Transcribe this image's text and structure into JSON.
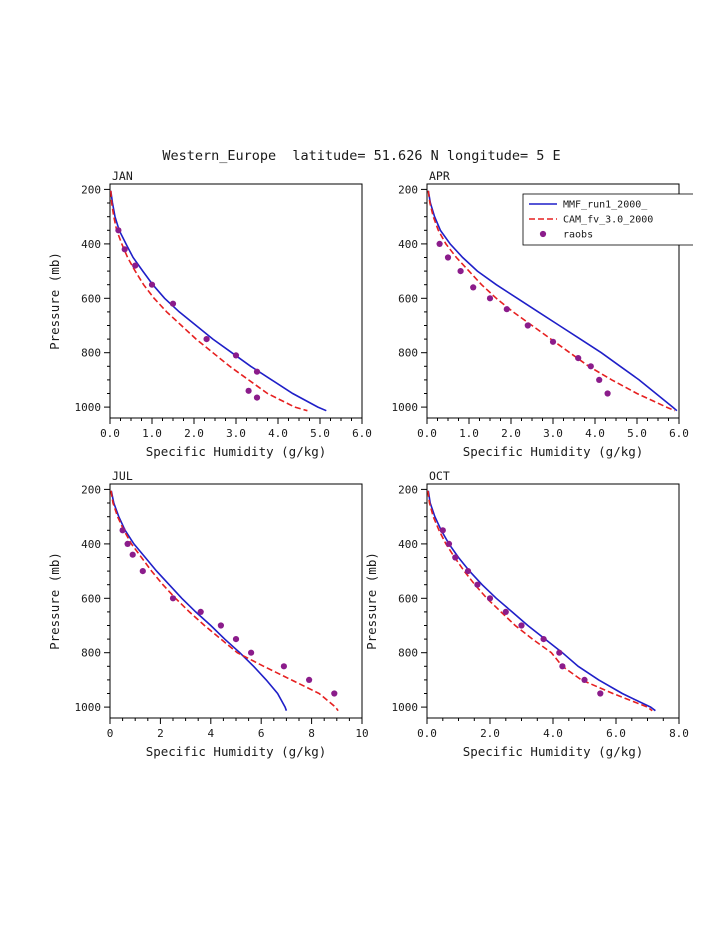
{
  "page": {
    "title": "Western_Europe  latitude= 51.626 N longitude= 5 E"
  },
  "colors": {
    "mmf": "#1f1fc8",
    "cam": "#e62020",
    "raobs": "#8b1c8b",
    "axis": "#000000"
  },
  "legend": {
    "items": [
      {
        "label": "MMF_run1_2000_",
        "style": "solid",
        "color_key": "mmf"
      },
      {
        "label": "CAM_fv_3.0_2000",
        "style": "dashed",
        "color_key": "cam"
      },
      {
        "label": "raobs",
        "style": "dot",
        "color_key": "raobs"
      }
    ]
  },
  "chart_data": [
    {
      "type": "line",
      "title": "JAN",
      "xlabel": "Specific Humidity (g/kg)",
      "ylabel": "Pressure (mb)",
      "show_ylabel": true,
      "show_legend": false,
      "xlim": [
        0,
        6
      ],
      "xtick_major": 1,
      "xtick_minor": 0.25,
      "xtick_decimals": 1,
      "ylim": [
        180,
        1040
      ],
      "ytick_major": 200,
      "ytick_minor": 50,
      "series": [
        {
          "name": "MMF_run1_2000_",
          "style": "solid",
          "color_key": "mmf",
          "pressure": [
            205,
            250,
            300,
            350,
            400,
            450,
            500,
            550,
            600,
            650,
            700,
            750,
            800,
            850,
            900,
            950,
            1000,
            1013
          ],
          "humidity": [
            0.02,
            0.06,
            0.12,
            0.22,
            0.38,
            0.55,
            0.78,
            1.02,
            1.3,
            1.65,
            2.05,
            2.45,
            2.9,
            3.35,
            3.85,
            4.35,
            4.95,
            5.15
          ]
        },
        {
          "name": "CAM_fv_3.0_2000",
          "style": "dashed",
          "color_key": "cam",
          "pressure": [
            205,
            250,
            300,
            350,
            400,
            450,
            500,
            550,
            600,
            650,
            700,
            750,
            800,
            850,
            900,
            950,
            1000,
            1013
          ],
          "humidity": [
            0.02,
            0.04,
            0.09,
            0.16,
            0.28,
            0.42,
            0.6,
            0.8,
            1.05,
            1.35,
            1.7,
            2.05,
            2.45,
            2.85,
            3.3,
            3.75,
            4.4,
            4.7
          ]
        },
        {
          "name": "raobs",
          "style": "dots",
          "color_key": "raobs",
          "pressure": [
            350,
            420,
            480,
            550,
            620,
            750,
            810,
            870,
            940,
            965
          ],
          "humidity": [
            0.2,
            0.35,
            0.6,
            1.0,
            1.5,
            2.3,
            3.0,
            3.5,
            3.3,
            3.5
          ]
        }
      ]
    },
    {
      "type": "line",
      "title": "APR",
      "xlabel": "Specific Humidity (g/kg)",
      "ylabel": "Pressure (mb)",
      "show_ylabel": false,
      "show_legend": true,
      "xlim": [
        0,
        6
      ],
      "xtick_major": 1,
      "xtick_minor": 0.25,
      "xtick_decimals": 1,
      "ylim": [
        180,
        1040
      ],
      "ytick_major": 200,
      "ytick_minor": 50,
      "series": [
        {
          "name": "MMF_run1_2000_",
          "style": "solid",
          "color_key": "mmf",
          "pressure": [
            205,
            250,
            300,
            350,
            400,
            450,
            500,
            550,
            600,
            650,
            700,
            750,
            800,
            850,
            900,
            950,
            1000,
            1013
          ],
          "humidity": [
            0.03,
            0.08,
            0.18,
            0.32,
            0.55,
            0.85,
            1.2,
            1.65,
            2.15,
            2.65,
            3.15,
            3.65,
            4.15,
            4.6,
            5.05,
            5.45,
            5.85,
            5.95
          ]
        },
        {
          "name": "CAM_fv_3.0_2000",
          "style": "dashed",
          "color_key": "cam",
          "pressure": [
            205,
            250,
            300,
            350,
            400,
            450,
            500,
            550,
            600,
            650,
            700,
            750,
            800,
            850,
            900,
            950,
            1000,
            1013
          ],
          "humidity": [
            0.03,
            0.07,
            0.15,
            0.27,
            0.45,
            0.7,
            1.0,
            1.3,
            1.65,
            2.05,
            2.5,
            2.95,
            3.4,
            3.85,
            4.4,
            5.0,
            5.7,
            5.9
          ]
        },
        {
          "name": "raobs",
          "style": "dots",
          "color_key": "raobs",
          "pressure": [
            400,
            450,
            500,
            560,
            600,
            640,
            700,
            760,
            820,
            850,
            900,
            950
          ],
          "humidity": [
            0.3,
            0.5,
            0.8,
            1.1,
            1.5,
            1.9,
            2.4,
            3.0,
            3.6,
            3.9,
            4.1,
            4.3
          ]
        }
      ]
    },
    {
      "type": "line",
      "title": "JUL",
      "xlabel": "Specific Humidity (g/kg)",
      "ylabel": "Pressure (mb)",
      "show_ylabel": true,
      "show_legend": false,
      "xlim": [
        0,
        10
      ],
      "xtick_major": 2,
      "xtick_minor": 0.5,
      "xtick_decimals": 0,
      "ylim": [
        180,
        1040
      ],
      "ytick_major": 200,
      "ytick_minor": 50,
      "series": [
        {
          "name": "MMF_run1_2000_",
          "style": "solid",
          "color_key": "mmf",
          "pressure": [
            205,
            250,
            300,
            350,
            400,
            450,
            500,
            550,
            600,
            650,
            700,
            750,
            800,
            850,
            900,
            950,
            1000,
            1013
          ],
          "humidity": [
            0.05,
            0.15,
            0.35,
            0.6,
            0.95,
            1.4,
            1.85,
            2.35,
            2.85,
            3.4,
            4.0,
            4.55,
            5.15,
            5.7,
            6.2,
            6.65,
            6.95,
            7.0
          ]
        },
        {
          "name": "CAM_fv_3.0_2000",
          "style": "dashed",
          "color_key": "cam",
          "pressure": [
            205,
            250,
            300,
            350,
            400,
            450,
            500,
            550,
            600,
            650,
            700,
            750,
            800,
            850,
            900,
            950,
            1000,
            1013
          ],
          "humidity": [
            0.04,
            0.12,
            0.3,
            0.55,
            0.85,
            1.25,
            1.65,
            2.1,
            2.6,
            3.15,
            3.75,
            4.4,
            5.05,
            6.1,
            7.2,
            8.3,
            8.95,
            9.05
          ]
        },
        {
          "name": "raobs",
          "style": "dots",
          "color_key": "raobs",
          "pressure": [
            350,
            400,
            440,
            500,
            600,
            650,
            700,
            750,
            800,
            850,
            900,
            950
          ],
          "humidity": [
            0.5,
            0.7,
            0.9,
            1.3,
            2.5,
            3.6,
            4.4,
            5.0,
            5.6,
            6.9,
            7.9,
            8.9
          ]
        }
      ]
    },
    {
      "type": "line",
      "title": "OCT",
      "xlabel": "Specific Humidity (g/kg)",
      "ylabel": "Pressure (mb)",
      "show_ylabel": true,
      "show_legend": false,
      "xlim": [
        0,
        8
      ],
      "xtick_major": 2,
      "xtick_minor": 0.5,
      "xtick_decimals": 1,
      "ylim": [
        180,
        1040
      ],
      "ytick_major": 200,
      "ytick_minor": 50,
      "series": [
        {
          "name": "MMF_run1_2000_",
          "style": "solid",
          "color_key": "mmf",
          "pressure": [
            205,
            250,
            300,
            350,
            400,
            450,
            500,
            550,
            600,
            650,
            700,
            750,
            800,
            850,
            900,
            950,
            1000,
            1013
          ],
          "humidity": [
            0.04,
            0.1,
            0.25,
            0.45,
            0.7,
            1.0,
            1.35,
            1.75,
            2.2,
            2.7,
            3.2,
            3.75,
            4.3,
            4.8,
            5.45,
            6.2,
            7.1,
            7.25
          ]
        },
        {
          "name": "CAM_fv_3.0_2000",
          "style": "dashed",
          "color_key": "cam",
          "pressure": [
            205,
            250,
            300,
            350,
            400,
            450,
            500,
            550,
            600,
            650,
            700,
            750,
            800,
            850,
            900,
            950,
            1000,
            1013
          ],
          "humidity": [
            0.03,
            0.08,
            0.2,
            0.38,
            0.6,
            0.88,
            1.18,
            1.52,
            1.9,
            2.35,
            2.8,
            3.35,
            3.95,
            4.3,
            4.9,
            5.9,
            7.0,
            7.15
          ]
        },
        {
          "name": "raobs",
          "style": "dots",
          "color_key": "raobs",
          "pressure": [
            350,
            400,
            450,
            500,
            550,
            600,
            650,
            700,
            750,
            800,
            850,
            900,
            950
          ],
          "humidity": [
            0.5,
            0.7,
            0.9,
            1.3,
            1.6,
            2.0,
            2.5,
            3.0,
            3.7,
            4.2,
            4.3,
            5.0,
            5.5
          ]
        }
      ]
    }
  ]
}
